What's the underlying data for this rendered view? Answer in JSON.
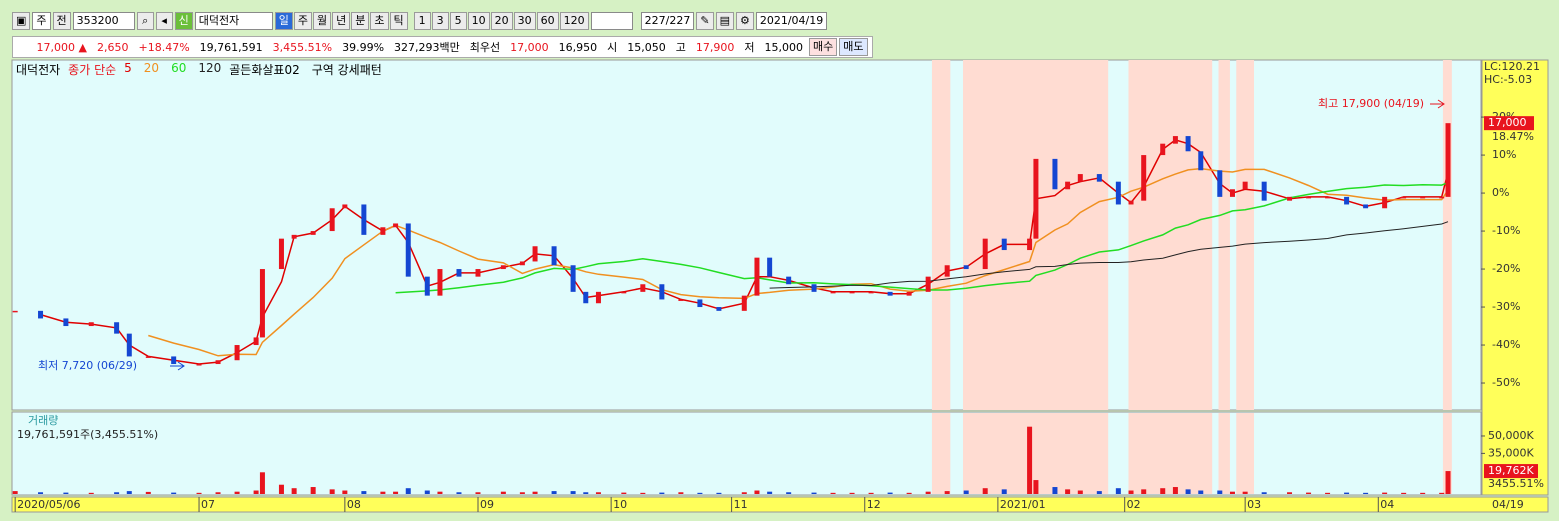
{
  "toolbar": {
    "market": "주",
    "mode": "전",
    "code": "353200",
    "badge": "신",
    "name": "대덕전자",
    "tabs": [
      "일",
      "주",
      "월",
      "년",
      "분",
      "초",
      "틱"
    ],
    "periods": [
      "1",
      "3",
      "5",
      "10",
      "20",
      "30",
      "60",
      "120"
    ],
    "count": "227/227",
    "date": "2021/04/19"
  },
  "quote": {
    "price": "17,000",
    "change": "2,650",
    "rate": "+18.47%",
    "volume": "19,761,591",
    "volume_rate": "3,455.51%",
    "turnover": "39.99%",
    "amount": "327,293백만",
    "priority_label": "최우선",
    "ask": "17,000",
    "bid": "16,950",
    "open_label": "시",
    "open": "15,050",
    "high_label": "고",
    "high": "17,900",
    "low_label": "저",
    "low": "15,000",
    "buy": "매수",
    "sell": "매도"
  },
  "chart_data": {
    "type": "candlestick",
    "name": "대덕전자",
    "ma_label": "종가 단순",
    "moving_averages": [
      {
        "period": 5,
        "label": "5",
        "color": "#e00000"
      },
      {
        "period": 20,
        "label": "20",
        "color": "#f09020"
      },
      {
        "period": 60,
        "label": "60",
        "color": "#22dd22"
      },
      {
        "period": 120,
        "label": "120",
        "color": "#222222"
      }
    ],
    "indicators": [
      "골든화살표02",
      "구역 강세패턴"
    ],
    "x": [
      0,
      4,
      8,
      12,
      16,
      18,
      21,
      25,
      29,
      32,
      35,
      38,
      39,
      42,
      44,
      47,
      50,
      52,
      55,
      58,
      60,
      62,
      65,
      67,
      70,
      73,
      77,
      80,
      82,
      85,
      88,
      90,
      92,
      96,
      99,
      102,
      105,
      108,
      111,
      115,
      117,
      119,
      122,
      126,
      129,
      132,
      135,
      138,
      141,
      144,
      147,
      150,
      153,
      156,
      160,
      161,
      164,
      166,
      168,
      171,
      174,
      176,
      178,
      181,
      183,
      185,
      187,
      190,
      192,
      194,
      197,
      201,
      204,
      207,
      210,
      213,
      216,
      219,
      222,
      225,
      226
    ],
    "close": [
      -31,
      -33,
      -35,
      -34,
      -37,
      -43,
      -43,
      -45,
      -45,
      -44,
      -40,
      -38,
      -20,
      -12,
      -11,
      -10,
      -4,
      -3,
      -11,
      -9,
      -8,
      -22,
      -27,
      -20,
      -22,
      -20,
      -19,
      -18,
      -14,
      -19,
      -26,
      -29,
      -26,
      -26,
      -24,
      -28,
      -28,
      -30,
      -31,
      -27,
      -17,
      -22,
      -24,
      -26,
      -26,
      -26,
      -26,
      -27,
      -26,
      -22,
      -19,
      -20,
      -12,
      -15,
      -12,
      9,
      1,
      3,
      5,
      3,
      -3,
      -2,
      10,
      13,
      15,
      11,
      6,
      -1,
      1,
      3,
      -2,
      -1,
      -1,
      -1,
      -3,
      -4,
      -1,
      -1,
      -1,
      -1,
      18.4
    ],
    "volume": [
      2500,
      1500,
      1200,
      1000,
      1500,
      2500,
      1800,
      1200,
      1000,
      1500,
      2000,
      3000,
      18700,
      8000,
      5000,
      6000,
      4000,
      3000,
      2500,
      2000,
      2000,
      5000,
      3000,
      2000,
      1500,
      1500,
      2000,
      1500,
      2000,
      2500,
      2500,
      1500,
      1500,
      1200,
      1000,
      1200,
      1500,
      1000,
      1000,
      1500,
      3000,
      2000,
      1500,
      1200,
      1000,
      1000,
      1000,
      1200,
      1000,
      2000,
      2500,
      3000,
      5000,
      4000,
      58000,
      12000,
      6000,
      4000,
      3000,
      2500,
      5000,
      3000,
      4000,
      5000,
      6000,
      4000,
      3000,
      3000,
      2000,
      2000,
      1500,
      1500,
      1200,
      1000,
      1200,
      1000,
      1200,
      1000,
      1000,
      1000,
      19762
    ],
    "zones": [
      [
        144.6,
        147.5
      ],
      [
        149.5,
        172.4
      ],
      [
        175.6,
        188.8
      ],
      [
        189.8,
        191.6
      ],
      [
        192.6,
        195.4
      ],
      [
        225.2,
        226.6
      ]
    ],
    "xlim": [
      -0.5,
      231.2
    ],
    "xticks": [
      {
        "value": 0,
        "label": "2020/05/06"
      },
      {
        "value": 29,
        "label": "07"
      },
      {
        "value": 52,
        "label": "08"
      },
      {
        "value": 73,
        "label": "09"
      },
      {
        "value": 94,
        "label": "10"
      },
      {
        "value": 113,
        "label": "11"
      },
      {
        "value": 134,
        "label": "12"
      },
      {
        "value": 155,
        "label": "2021/01"
      },
      {
        "value": 175,
        "label": "02"
      },
      {
        "value": 194,
        "label": "03"
      },
      {
        "value": 215,
        "label": "04"
      }
    ],
    "last_date": "04/19",
    "ylim": [
      -57.1,
      34.5
    ],
    "yticks": [
      {
        "value": 20,
        "label": "20%"
      },
      {
        "value": 10,
        "label": "10%"
      },
      {
        "value": 0,
        "label": "0%"
      },
      {
        "value": -10,
        "label": "-10%"
      },
      {
        "value": -20,
        "label": "-20%"
      },
      {
        "value": -30,
        "label": "-30%"
      },
      {
        "value": -40,
        "label": "-40%"
      },
      {
        "value": -50,
        "label": "-50%"
      }
    ],
    "lc": "LC:120.21",
    "hc": "HC:-5.03",
    "last_price_label": "17,000",
    "last_rate_label": "18.47%",
    "high_note": "최고 17,900 (04/19)",
    "low_note": "최저 7,720 (06/29)",
    "volume_title": "거래량",
    "volume_summary": "19,761,591주(3,455.51%)",
    "vlim": [
      0,
      69800
    ],
    "vticks": [
      {
        "value": 50000,
        "label": "50,000K"
      },
      {
        "value": 35000,
        "label": "35,000K"
      }
    ],
    "last_volume_label": "19,762K",
    "last_volume_rate": "3455.51%",
    "up_color": "#e8141e",
    "down_color": "#1446d2"
  }
}
